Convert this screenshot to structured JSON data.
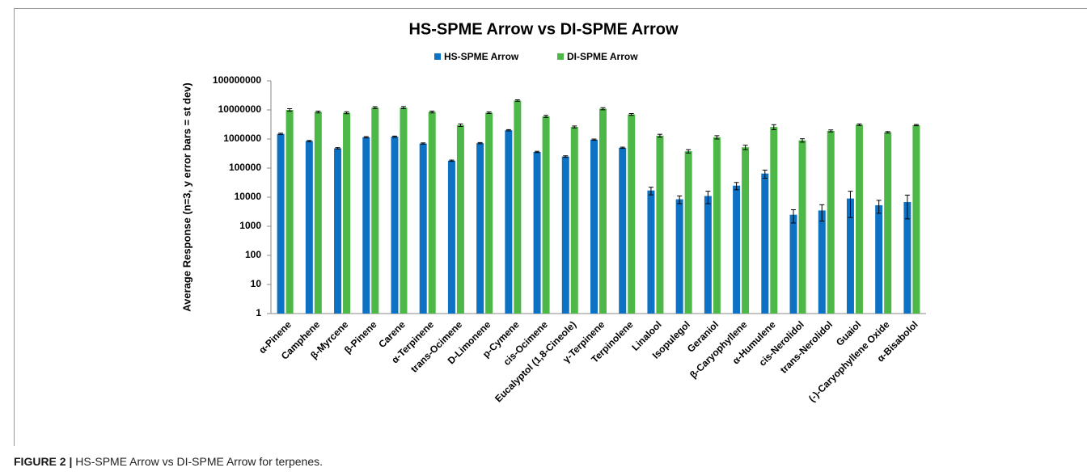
{
  "chart_data": {
    "type": "bar",
    "title": "HS-SPME Arrow vs DI-SPME Arrow",
    "y_label": "Average Response (n=3, y error bars = st dev)",
    "log_scale": true,
    "legend": "top",
    "categories": [
      "α-Pinene",
      "Camphene",
      "β-Myrcene",
      "β-Pinene",
      "Carene",
      "α-Terpinene",
      "trans-Ocimene",
      "D-Limonene",
      "p-Cymene",
      "cis-Ocimene",
      "Eucalyptol (1,8-Cineole)",
      "γ-Terpinene",
      "Terpinolene",
      "Linalool",
      "Isopulegol",
      "Geraniol",
      "β-Caryophyllene",
      "α-Humulene",
      "cis-Nerolidol",
      "trans-Nerolidol",
      "Guaiol",
      "(-)-Caryophyllene Oxide",
      "α-Bisabolol"
    ],
    "series": [
      {
        "name": "HS-SPME Arrow",
        "color": "#0e72c4",
        "values": [
          1500000,
          850000,
          480000,
          1150000,
          1200000,
          700000,
          180000,
          720000,
          2000000,
          360000,
          250000,
          950000,
          500000,
          17000,
          8500,
          11000,
          25000,
          65000,
          2500,
          3500,
          9000,
          5300,
          6800
        ],
        "errors": [
          80000,
          40000,
          25000,
          60000,
          60000,
          35000,
          9000,
          35000,
          100000,
          18000,
          15000,
          45000,
          25000,
          5000,
          2500,
          5000,
          7000,
          20000,
          1200,
          2000,
          7000,
          2500,
          5000
        ]
      },
      {
        "name": "DI-SPME Arrow",
        "color": "#4db847",
        "values": [
          10000000,
          8500000,
          8000000,
          12000000,
          12000000,
          8500000,
          3000000,
          8000000,
          21000000,
          6000000,
          2600000,
          11000000,
          7000000,
          1300000,
          380000,
          1150000,
          520000,
          2600000,
          900000,
          1900000,
          3100000,
          1700000,
          3000000
        ],
        "errors": [
          1000000,
          600000,
          600000,
          900000,
          1000000,
          600000,
          300000,
          500000,
          1200000,
          500000,
          200000,
          900000,
          500000,
          150000,
          50000,
          150000,
          90000,
          500000,
          120000,
          150000,
          200000,
          100000,
          150000
        ]
      }
    ],
    "ylim": [
      1,
      100000000
    ],
    "yticks": [
      1,
      10,
      100,
      1000,
      10000,
      100000,
      1000000,
      10000000,
      100000000
    ]
  },
  "caption": {
    "label": "FIGURE 2 |",
    "text": "HS-SPME Arrow vs DI-SPME Arrow for terpenes."
  }
}
